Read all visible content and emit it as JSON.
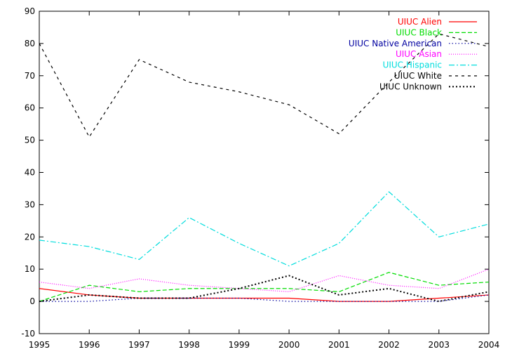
{
  "chart_data": {
    "type": "line",
    "x": [
      1995,
      1996,
      1997,
      1998,
      1999,
      2000,
      2001,
      2002,
      2003,
      2004
    ],
    "xlim": [
      1995,
      2004
    ],
    "ylim": [
      -10,
      90
    ],
    "xticks": [
      "1995",
      "1996",
      "1997",
      "1998",
      "1999",
      "2000",
      "2001",
      "2002",
      "2003",
      "2004"
    ],
    "yticks": [
      "-10",
      "0",
      "10",
      "20",
      "30",
      "40",
      "50",
      "60",
      "70",
      "80",
      "90"
    ],
    "legend_position": "top-right",
    "series": [
      {
        "name": "UIUC Alien",
        "color": "#ff0000",
        "dash": "solid",
        "values": [
          4,
          2,
          1,
          1,
          1,
          1,
          0,
          0,
          1,
          2
        ]
      },
      {
        "name": "UIUC Black",
        "color": "#00dd00",
        "dash": "dashed",
        "values": [
          0,
          5,
          3,
          4,
          4,
          4,
          3,
          9,
          5,
          6
        ]
      },
      {
        "name": "UIUC Native American",
        "color": "#0000a0",
        "dash": "dotted",
        "values": [
          0,
          0,
          1,
          1,
          1,
          0,
          0,
          0,
          0,
          2
        ]
      },
      {
        "name": "UIUC Asian",
        "color": "#ff00ff",
        "dash": "fine-dotted",
        "values": [
          6,
          4,
          7,
          5,
          4,
          3,
          8,
          5,
          4,
          10
        ]
      },
      {
        "name": "UIUC Hispanic",
        "color": "#00dddd",
        "dash": "dash-dot",
        "values": [
          19,
          17,
          13,
          26,
          18,
          11,
          18,
          34,
          20,
          24
        ]
      },
      {
        "name": "UIUC White",
        "color": "#000000",
        "dash": "short-dash",
        "values": [
          80,
          51,
          75,
          68,
          65,
          61,
          52,
          68,
          83,
          79
        ]
      },
      {
        "name": "UIUC Unknown",
        "color": "#000000",
        "dash": "heavy-dotted",
        "values": [
          0,
          2,
          1,
          1,
          4,
          8,
          2,
          4,
          0,
          3
        ]
      }
    ]
  }
}
